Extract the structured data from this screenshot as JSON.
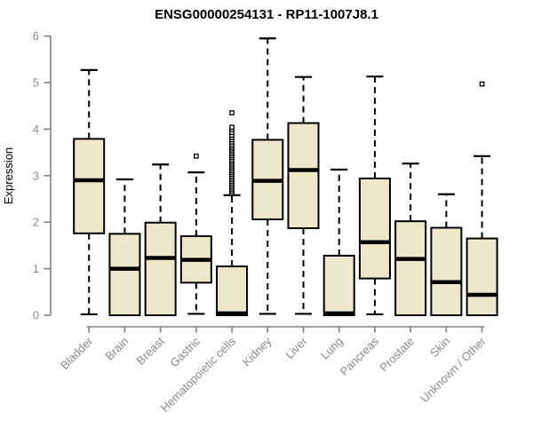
{
  "chart_data": {
    "type": "boxplot",
    "title": "ENSG00000254131 - RP11-1007J8.1",
    "ylabel": "Expression",
    "xlabel": "",
    "ylim": [
      0,
      6
    ],
    "yticks": [
      0,
      1,
      2,
      3,
      4,
      5,
      6
    ],
    "grid": "off",
    "legend": "none",
    "categories": [
      "Bladder",
      "Brain",
      "Breast",
      "Gastric",
      "Hematopoietic cells",
      "Kidney",
      "Liver",
      "Lung",
      "Pancreas",
      "Prostate",
      "Skin",
      "Unknown / Other"
    ],
    "series": [
      {
        "name": "Bladder",
        "min": 0.02,
        "q1": 1.76,
        "median": 2.9,
        "q3": 3.79,
        "max": 5.27,
        "outliers": []
      },
      {
        "name": "Brain",
        "min": 0.0,
        "q1": 0.0,
        "median": 1.0,
        "q3": 1.75,
        "max": 2.92,
        "outliers": []
      },
      {
        "name": "Breast",
        "min": 0.0,
        "q1": 0.0,
        "median": 1.23,
        "q3": 1.99,
        "max": 3.24,
        "outliers": []
      },
      {
        "name": "Gastric",
        "min": 0.03,
        "q1": 0.7,
        "median": 1.19,
        "q3": 1.7,
        "max": 3.07,
        "outliers": [
          3.42
        ]
      },
      {
        "name": "Hematopoietic cells",
        "min": 0.0,
        "q1": 0.0,
        "median": 0.04,
        "q3": 1.05,
        "max": 2.58,
        "outliers": [
          2.63,
          2.67,
          2.71,
          2.75,
          2.79,
          2.83,
          2.87,
          2.91,
          2.95,
          2.99,
          3.03,
          3.07,
          3.11,
          3.15,
          3.19,
          3.23,
          3.27,
          3.31,
          3.35,
          3.39,
          3.43,
          3.47,
          3.51,
          3.55,
          3.59,
          3.63,
          3.67,
          3.72,
          3.77,
          3.82,
          3.87,
          3.93,
          3.99,
          4.04,
          4.35
        ]
      },
      {
        "name": "Kidney",
        "min": 0.03,
        "q1": 2.06,
        "median": 2.89,
        "q3": 3.77,
        "max": 5.95,
        "outliers": []
      },
      {
        "name": "Liver",
        "min": 0.03,
        "q1": 1.87,
        "median": 3.12,
        "q3": 4.13,
        "max": 5.12,
        "outliers": []
      },
      {
        "name": "Lung",
        "min": 0.0,
        "q1": 0.0,
        "median": 0.04,
        "q3": 1.28,
        "max": 3.13,
        "outliers": []
      },
      {
        "name": "Pancreas",
        "min": 0.02,
        "q1": 0.79,
        "median": 1.57,
        "q3": 2.94,
        "max": 5.13,
        "outliers": []
      },
      {
        "name": "Prostate",
        "min": 0.0,
        "q1": 0.0,
        "median": 1.21,
        "q3": 2.02,
        "max": 3.26,
        "outliers": []
      },
      {
        "name": "Skin",
        "min": 0.0,
        "q1": 0.0,
        "median": 0.71,
        "q3": 1.88,
        "max": 2.6,
        "outliers": []
      },
      {
        "name": "Unknown / Other",
        "min": 0.0,
        "q1": 0.0,
        "median": 0.44,
        "q3": 1.65,
        "max": 3.42,
        "outliers": [
          4.97
        ]
      }
    ]
  },
  "colors": {
    "background": "#FFFFFF",
    "box_fill": "#EDE7CB",
    "box_stroke": "#000000",
    "median": "#000000",
    "whisker": "#000000",
    "outlier_stroke": "#000000",
    "outlier_fill": "#FFFFFF",
    "axis_line": "#808080",
    "tick_label": "#8A8A8A",
    "title": "#000000"
  }
}
